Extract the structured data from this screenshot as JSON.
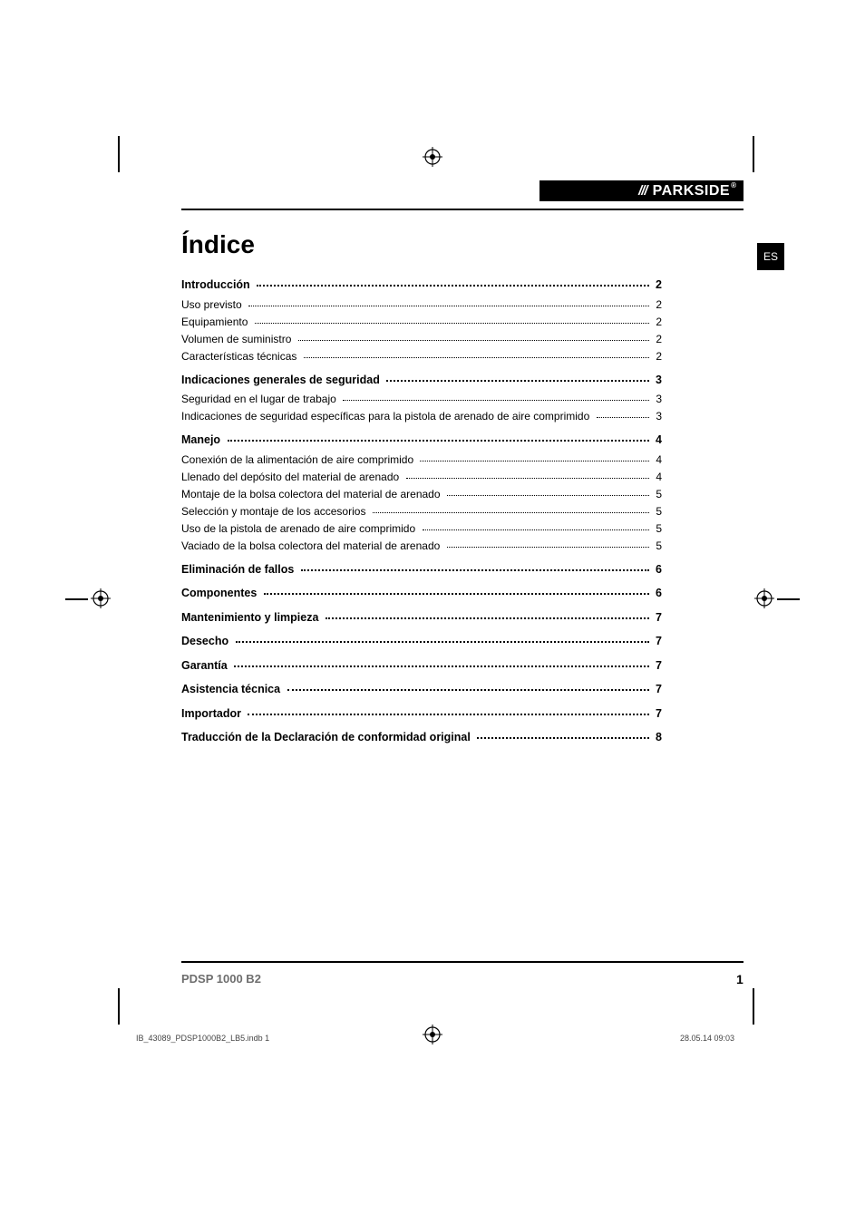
{
  "brand": {
    "slashes": "///",
    "name": "PARKSIDE",
    "reg": "®"
  },
  "lang_tab": "ES",
  "title": "Índice",
  "toc": [
    {
      "type": "group",
      "head": {
        "label": "Introducción",
        "page": "2"
      },
      "items": [
        {
          "label": "Uso previsto",
          "page": "2"
        },
        {
          "label": "Equipamiento",
          "page": "2"
        },
        {
          "label": "Volumen de suministro",
          "page": "2"
        },
        {
          "label": "Características técnicas",
          "page": "2"
        }
      ]
    },
    {
      "type": "group",
      "head": {
        "label": "Indicaciones generales de seguridad",
        "page": "3"
      },
      "items": [
        {
          "label": "Seguridad en el lugar de trabajo",
          "page": "3"
        },
        {
          "label": "Indicaciones de seguridad específicas para la pistola de arenado de aire comprimido",
          "page": "3"
        }
      ]
    },
    {
      "type": "group",
      "head": {
        "label": "Manejo",
        "page": "4"
      },
      "items": [
        {
          "label": "Conexión de la alimentación de aire comprimido",
          "page": "4"
        },
        {
          "label": "Llenado del depósito del material de arenado",
          "page": "4"
        },
        {
          "label": "Montaje de la bolsa colectora del material de arenado",
          "page": "5"
        },
        {
          "label": "Selección y montaje de los accesorios",
          "page": "5"
        },
        {
          "label": "Uso de la pistola de arenado de aire comprimido",
          "page": "5"
        },
        {
          "label": "Vaciado de la bolsa colectora del material de arenado",
          "page": "5"
        }
      ]
    },
    {
      "type": "single",
      "head": {
        "label": "Eliminación de fallos",
        "page": "6"
      }
    },
    {
      "type": "single",
      "head": {
        "label": "Componentes",
        "page": "6"
      }
    },
    {
      "type": "single",
      "head": {
        "label": "Mantenimiento y limpieza",
        "page": "7"
      }
    },
    {
      "type": "single",
      "head": {
        "label": "Desecho",
        "page": "7"
      }
    },
    {
      "type": "single",
      "head": {
        "label": "Garantía",
        "page": "7"
      }
    },
    {
      "type": "single",
      "head": {
        "label": "Asistencia técnica",
        "page": "7"
      }
    },
    {
      "type": "single",
      "head": {
        "label": "Importador",
        "page": "7"
      }
    },
    {
      "type": "single",
      "head": {
        "label": "Traducción de la Declaración de conformidad original",
        "page": "8"
      }
    }
  ],
  "footer": {
    "model": "PDSP 1000 B2",
    "page_number": "1"
  },
  "imprint": {
    "left": "IB_43089_PDSP1000B2_LB5.indb   1",
    "right": "28.05.14   09:03"
  }
}
